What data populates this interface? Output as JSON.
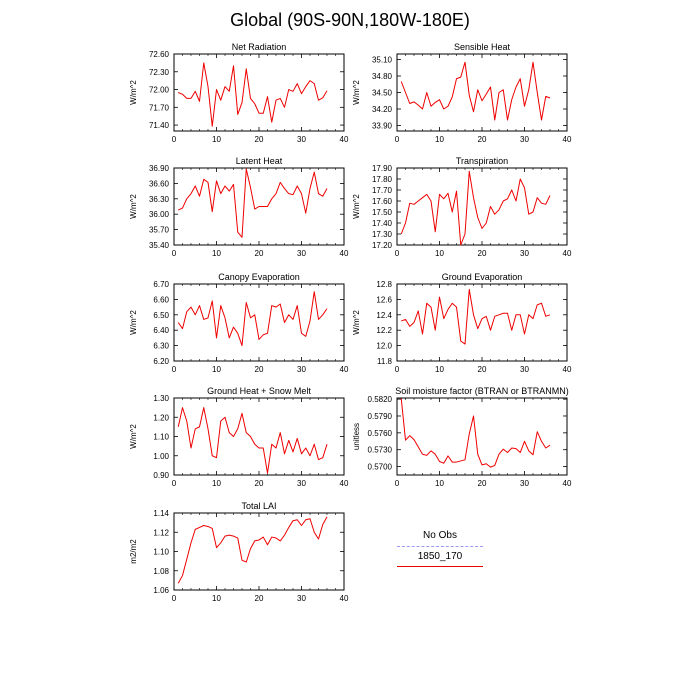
{
  "title": "Global (90S-90N,180W-180E)",
  "legend": {
    "entries": [
      {
        "label": "No Obs",
        "color": "#9999ee",
        "style": "dashed"
      },
      {
        "label": "1850_170",
        "color": "#ee0000",
        "style": "solid"
      }
    ]
  },
  "chart_data": [
    {
      "type": "line",
      "title": "Net Radiation",
      "ylabel": "W/m^2",
      "xlim": [
        0,
        40
      ],
      "ylim": [
        71.3,
        72.6
      ],
      "xticks": [
        0,
        10,
        20,
        30,
        40
      ],
      "yticks": [
        71.4,
        71.7,
        72.0,
        72.3,
        72.6
      ],
      "ytick_labels": [
        "71.40",
        "71.70",
        "72.00",
        "72.30",
        "72.60"
      ],
      "series": [
        {
          "name": "1850_170",
          "color": "#ee0000",
          "x": [
            1,
            2,
            3,
            4,
            5,
            6,
            7,
            8,
            9,
            10,
            11,
            12,
            13,
            14,
            15,
            16,
            17,
            18,
            19,
            20,
            21,
            22,
            23,
            24,
            25,
            26,
            27,
            28,
            29,
            30,
            31,
            32,
            33,
            34,
            35,
            36
          ],
          "y": [
            71.95,
            71.92,
            71.85,
            71.85,
            71.97,
            71.8,
            72.45,
            72.05,
            71.38,
            72.0,
            71.82,
            72.05,
            71.97,
            72.4,
            71.58,
            71.78,
            72.35,
            71.85,
            71.76,
            71.6,
            71.6,
            71.88,
            71.45,
            71.82,
            71.85,
            71.7,
            72.0,
            71.97,
            72.1,
            71.93,
            72.05,
            72.15,
            72.1,
            71.82,
            71.86,
            71.98
          ]
        }
      ]
    },
    {
      "type": "line",
      "title": "Sensible Heat",
      "ylabel": "W/m^2",
      "xlim": [
        0,
        40
      ],
      "ylim": [
        33.8,
        35.2
      ],
      "xticks": [
        0,
        10,
        20,
        30,
        40
      ],
      "yticks": [
        33.9,
        34.2,
        34.5,
        34.8,
        35.1
      ],
      "ytick_labels": [
        "33.90",
        "34.20",
        "34.50",
        "34.80",
        "35.10"
      ],
      "series": [
        {
          "name": "1850_170",
          "color": "#ee0000",
          "x": [
            1,
            2,
            3,
            4,
            5,
            6,
            7,
            8,
            9,
            10,
            11,
            12,
            13,
            14,
            15,
            16,
            17,
            18,
            19,
            20,
            21,
            22,
            23,
            24,
            25,
            26,
            27,
            28,
            29,
            30,
            31,
            32,
            33,
            34,
            35,
            36
          ],
          "y": [
            34.7,
            34.5,
            34.3,
            34.33,
            34.27,
            34.2,
            34.5,
            34.25,
            34.32,
            34.37,
            34.2,
            34.25,
            34.42,
            34.75,
            34.78,
            35.05,
            34.45,
            34.15,
            34.55,
            34.35,
            34.47,
            34.6,
            34.0,
            34.5,
            34.55,
            34.0,
            34.37,
            34.6,
            34.75,
            34.25,
            34.55,
            35.05,
            34.5,
            34.0,
            34.43,
            34.4
          ]
        }
      ]
    },
    {
      "type": "line",
      "title": "Latent Heat",
      "ylabel": "W/m^2",
      "xlim": [
        0,
        40
      ],
      "ylim": [
        35.4,
        36.9
      ],
      "xticks": [
        0,
        10,
        20,
        30,
        40
      ],
      "yticks": [
        35.4,
        35.7,
        36.0,
        36.3,
        36.6,
        36.9
      ],
      "ytick_labels": [
        "35.40",
        "35.70",
        "36.00",
        "36.30",
        "36.60",
        "36.90"
      ],
      "series": [
        {
          "name": "1850_170",
          "color": "#ee0000",
          "x": [
            1,
            2,
            3,
            4,
            5,
            6,
            7,
            8,
            9,
            10,
            11,
            12,
            13,
            14,
            15,
            16,
            17,
            18,
            19,
            20,
            21,
            22,
            23,
            24,
            25,
            26,
            27,
            28,
            29,
            30,
            31,
            32,
            33,
            34,
            35,
            36
          ],
          "y": [
            36.08,
            36.12,
            36.3,
            36.4,
            36.55,
            36.35,
            36.68,
            36.62,
            36.05,
            36.65,
            36.4,
            36.55,
            36.45,
            36.58,
            35.65,
            35.55,
            36.88,
            36.52,
            36.1,
            36.15,
            36.15,
            36.15,
            36.3,
            36.4,
            36.62,
            36.5,
            36.4,
            36.38,
            36.55,
            36.4,
            36.02,
            36.5,
            36.82,
            36.4,
            36.35,
            36.5
          ]
        }
      ]
    },
    {
      "type": "line",
      "title": "Transpiration",
      "ylabel": "W/m^2",
      "xlim": [
        0,
        40
      ],
      "ylim": [
        17.2,
        17.9
      ],
      "xticks": [
        0,
        10,
        20,
        30,
        40
      ],
      "yticks": [
        17.2,
        17.3,
        17.4,
        17.5,
        17.6,
        17.7,
        17.8,
        17.9
      ],
      "ytick_labels": [
        "17.20",
        "17.30",
        "17.40",
        "17.50",
        "17.60",
        "17.70",
        "17.80",
        "17.90"
      ],
      "series": [
        {
          "name": "1850_170",
          "color": "#ee0000",
          "x": [
            1,
            2,
            3,
            4,
            5,
            6,
            7,
            8,
            9,
            10,
            11,
            12,
            13,
            14,
            15,
            16,
            17,
            18,
            19,
            20,
            21,
            22,
            23,
            24,
            25,
            26,
            27,
            28,
            29,
            30,
            31,
            32,
            33,
            34,
            35,
            36
          ],
          "y": [
            17.3,
            17.4,
            17.58,
            17.57,
            17.6,
            17.63,
            17.66,
            17.6,
            17.32,
            17.66,
            17.62,
            17.67,
            17.5,
            17.69,
            17.2,
            17.3,
            17.87,
            17.63,
            17.45,
            17.35,
            17.4,
            17.55,
            17.48,
            17.52,
            17.6,
            17.62,
            17.7,
            17.6,
            17.8,
            17.72,
            17.48,
            17.5,
            17.63,
            17.58,
            17.57,
            17.65
          ]
        }
      ]
    },
    {
      "type": "line",
      "title": "Canopy Evaporation",
      "ylabel": "W/m^2",
      "xlim": [
        0,
        40
      ],
      "ylim": [
        6.2,
        6.7
      ],
      "xticks": [
        0,
        10,
        20,
        30,
        40
      ],
      "yticks": [
        6.2,
        6.3,
        6.4,
        6.5,
        6.6,
        6.7
      ],
      "ytick_labels": [
        "6.20",
        "6.30",
        "6.40",
        "6.50",
        "6.60",
        "6.70"
      ],
      "series": [
        {
          "name": "1850_170",
          "color": "#ee0000",
          "x": [
            1,
            2,
            3,
            4,
            5,
            6,
            7,
            8,
            9,
            10,
            11,
            12,
            13,
            14,
            15,
            16,
            17,
            18,
            19,
            20,
            21,
            22,
            23,
            24,
            25,
            26,
            27,
            28,
            29,
            30,
            31,
            32,
            33,
            34,
            35,
            36
          ],
          "y": [
            6.45,
            6.41,
            6.52,
            6.55,
            6.5,
            6.56,
            6.47,
            6.48,
            6.59,
            6.35,
            6.56,
            6.48,
            6.35,
            6.42,
            6.38,
            6.3,
            6.58,
            6.48,
            6.5,
            6.34,
            6.37,
            6.38,
            6.56,
            6.55,
            6.57,
            6.45,
            6.5,
            6.47,
            6.56,
            6.38,
            6.36,
            6.46,
            6.65,
            6.47,
            6.5,
            6.54
          ]
        }
      ]
    },
    {
      "type": "line",
      "title": "Ground Evaporation",
      "ylabel": "W/m^2",
      "xlim": [
        0,
        40
      ],
      "ylim": [
        11.8,
        12.8
      ],
      "xticks": [
        0,
        10,
        20,
        30,
        40
      ],
      "yticks": [
        11.8,
        12.0,
        12.2,
        12.4,
        12.6,
        12.8
      ],
      "ytick_labels": [
        "11.8",
        "12.0",
        "12.2",
        "12.4",
        "12.6",
        "12.8"
      ],
      "series": [
        {
          "name": "1850_170",
          "color": "#ee0000",
          "x": [
            1,
            2,
            3,
            4,
            5,
            6,
            7,
            8,
            9,
            10,
            11,
            12,
            13,
            14,
            15,
            16,
            17,
            18,
            19,
            20,
            21,
            22,
            23,
            24,
            25,
            26,
            27,
            28,
            29,
            30,
            31,
            32,
            33,
            34,
            35,
            36
          ],
          "y": [
            12.32,
            12.34,
            12.25,
            12.3,
            12.45,
            12.15,
            12.55,
            12.5,
            12.2,
            12.63,
            12.35,
            12.47,
            12.55,
            12.5,
            12.06,
            12.02,
            12.73,
            12.4,
            12.22,
            12.35,
            12.38,
            12.2,
            12.38,
            12.4,
            12.42,
            12.42,
            12.2,
            12.4,
            12.4,
            12.15,
            12.4,
            12.35,
            12.53,
            12.55,
            12.38,
            12.4
          ]
        }
      ]
    },
    {
      "type": "line",
      "title": "Ground Heat + Snow Melt",
      "ylabel": "W/m^2",
      "xlim": [
        0,
        40
      ],
      "ylim": [
        0.9,
        1.3
      ],
      "xticks": [
        0,
        10,
        20,
        30,
        40
      ],
      "yticks": [
        0.9,
        1.0,
        1.1,
        1.2,
        1.3
      ],
      "ytick_labels": [
        "0.90",
        "1.00",
        "1.10",
        "1.20",
        "1.30"
      ],
      "series": [
        {
          "name": "1850_170",
          "color": "#ee0000",
          "x": [
            1,
            2,
            3,
            4,
            5,
            6,
            7,
            8,
            9,
            10,
            11,
            12,
            13,
            14,
            15,
            16,
            17,
            18,
            19,
            20,
            21,
            22,
            23,
            24,
            25,
            26,
            27,
            28,
            29,
            30,
            31,
            32,
            33,
            34,
            35,
            36
          ],
          "y": [
            1.15,
            1.25,
            1.18,
            1.04,
            1.14,
            1.15,
            1.25,
            1.14,
            1.0,
            0.99,
            1.18,
            1.2,
            1.12,
            1.1,
            1.14,
            1.22,
            1.12,
            1.1,
            1.06,
            1.04,
            1.04,
            0.91,
            1.06,
            1.04,
            1.12,
            1.01,
            1.08,
            1.02,
            1.09,
            1.01,
            1.04,
            1.0,
            1.06,
            0.98,
            0.99,
            1.06
          ]
        }
      ]
    },
    {
      "type": "line",
      "title": "Soil moisture factor (BTRAN or BTRANMN)",
      "ylabel": "unitless",
      "xlim": [
        0,
        40
      ],
      "ylim": [
        0.5685,
        0.5822
      ],
      "xticks": [
        0,
        10,
        20,
        30,
        40
      ],
      "yticks": [
        0.57,
        0.573,
        0.576,
        0.579,
        0.582
      ],
      "ytick_labels": [
        "0.5700",
        "0.5730",
        "0.5760",
        "0.5790",
        "0.5820"
      ],
      "series": [
        {
          "name": "1850_170",
          "color": "#ee0000",
          "x": [
            1,
            2,
            3,
            4,
            5,
            6,
            7,
            8,
            9,
            10,
            11,
            12,
            13,
            14,
            15,
            16,
            17,
            18,
            19,
            20,
            21,
            22,
            23,
            24,
            25,
            26,
            27,
            28,
            29,
            30,
            31,
            32,
            33,
            34,
            35,
            36
          ],
          "y": [
            0.5821,
            0.5747,
            0.5755,
            0.5748,
            0.5735,
            0.5722,
            0.572,
            0.5728,
            0.5722,
            0.5709,
            0.5706,
            0.5719,
            0.5708,
            0.5708,
            0.571,
            0.5712,
            0.5758,
            0.579,
            0.5722,
            0.5703,
            0.5705,
            0.5699,
            0.5702,
            0.5722,
            0.5731,
            0.5725,
            0.5733,
            0.5732,
            0.5725,
            0.5745,
            0.5728,
            0.5721,
            0.5762,
            0.5745,
            0.5733,
            0.5738
          ]
        }
      ]
    },
    {
      "type": "line",
      "title": "Total LAI",
      "ylabel": "m2/m2",
      "xlim": [
        0,
        40
      ],
      "ylim": [
        1.06,
        1.14
      ],
      "xticks": [
        0,
        10,
        20,
        30,
        40
      ],
      "yticks": [
        1.06,
        1.08,
        1.1,
        1.12,
        1.14
      ],
      "ytick_labels": [
        "1.06",
        "1.08",
        "1.10",
        "1.12",
        "1.14"
      ],
      "series": [
        {
          "name": "1850_170",
          "color": "#ee0000",
          "x": [
            1,
            2,
            3,
            4,
            5,
            6,
            7,
            8,
            9,
            10,
            11,
            12,
            13,
            14,
            15,
            16,
            17,
            18,
            19,
            20,
            21,
            22,
            23,
            24,
            25,
            26,
            27,
            28,
            29,
            30,
            31,
            32,
            33,
            34,
            35,
            36
          ],
          "y": [
            1.067,
            1.075,
            1.092,
            1.109,
            1.123,
            1.125,
            1.127,
            1.126,
            1.124,
            1.104,
            1.109,
            1.116,
            1.117,
            1.116,
            1.114,
            1.091,
            1.089,
            1.103,
            1.111,
            1.112,
            1.115,
            1.107,
            1.115,
            1.114,
            1.111,
            1.117,
            1.125,
            1.132,
            1.133,
            1.127,
            1.133,
            1.134,
            1.12,
            1.113,
            1.128,
            1.136
          ]
        }
      ]
    }
  ]
}
